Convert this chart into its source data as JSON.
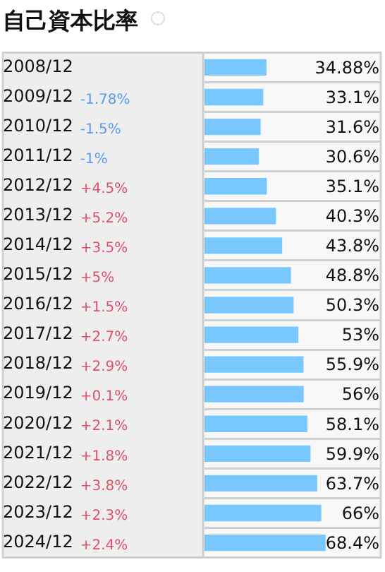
{
  "chart_data": {
    "type": "bar",
    "orientation": "horizontal",
    "title": "自己資本比率",
    "categories": [
      "2008/12",
      "2009/12",
      "2010/12",
      "2011/12",
      "2012/12",
      "2013/12",
      "2014/12",
      "2015/12",
      "2016/12",
      "2017/12",
      "2018/12",
      "2019/12",
      "2020/12",
      "2021/12",
      "2022/12",
      "2023/12",
      "2024/12"
    ],
    "values": [
      34.88,
      33.1,
      31.6,
      30.6,
      35.1,
      40.3,
      43.8,
      48.8,
      50.3,
      53,
      55.9,
      56,
      58.1,
      59.9,
      63.7,
      66,
      68.4
    ],
    "value_labels": [
      "34.88%",
      "33.1%",
      "31.6%",
      "30.6%",
      "35.1%",
      "40.3%",
      "43.8%",
      "48.8%",
      "50.3%",
      "53%",
      "55.9%",
      "56%",
      "58.1%",
      "59.9%",
      "63.7%",
      "66%",
      "68.4%"
    ],
    "color": "#78c8ff",
    "xlim": [
      0,
      100
    ],
    "tick_labels": "y",
    "grid": "y",
    "legend": false,
    "annotations": [
      "-1.78%",
      "-1.5%",
      "-1%",
      "+4.5%",
      "+5.2%",
      "+3.5%",
      "+5%",
      "+1.5%",
      "+2.7%",
      "+2.9%",
      "+0.1%",
      "+2.1%",
      "+1.8%",
      "+3.8%",
      "+2.3%",
      "+2.4%"
    ]
  }
}
